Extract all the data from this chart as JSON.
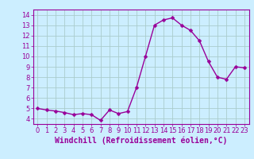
{
  "x": [
    0,
    1,
    2,
    3,
    4,
    5,
    6,
    7,
    8,
    9,
    10,
    11,
    12,
    13,
    14,
    15,
    16,
    17,
    18,
    19,
    20,
    21,
    22,
    23
  ],
  "y": [
    5.0,
    4.85,
    4.75,
    4.6,
    4.4,
    4.5,
    4.4,
    3.85,
    4.85,
    4.5,
    4.7,
    7.0,
    10.0,
    13.0,
    13.5,
    13.7,
    13.0,
    12.5,
    11.5,
    9.5,
    8.0,
    7.8,
    9.0,
    8.9
  ],
  "line_color": "#990099",
  "marker_color": "#990099",
  "bg_color": "#cceeff",
  "grid_color": "#aacccc",
  "xlabel": "Windchill (Refroidissement éolien,°C)",
  "ylim": [
    3.5,
    14.5
  ],
  "xlim": [
    -0.5,
    23.5
  ],
  "yticks": [
    4,
    5,
    6,
    7,
    8,
    9,
    10,
    11,
    12,
    13,
    14
  ],
  "xticks": [
    0,
    1,
    2,
    3,
    4,
    5,
    6,
    7,
    8,
    9,
    10,
    11,
    12,
    13,
    14,
    15,
    16,
    17,
    18,
    19,
    20,
    21,
    22,
    23
  ],
  "tick_label_color": "#990099",
  "axis_label_color": "#990099",
  "xlabel_fontsize": 7,
  "tick_fontsize": 6,
  "line_width": 1.0,
  "marker_size": 2.5
}
